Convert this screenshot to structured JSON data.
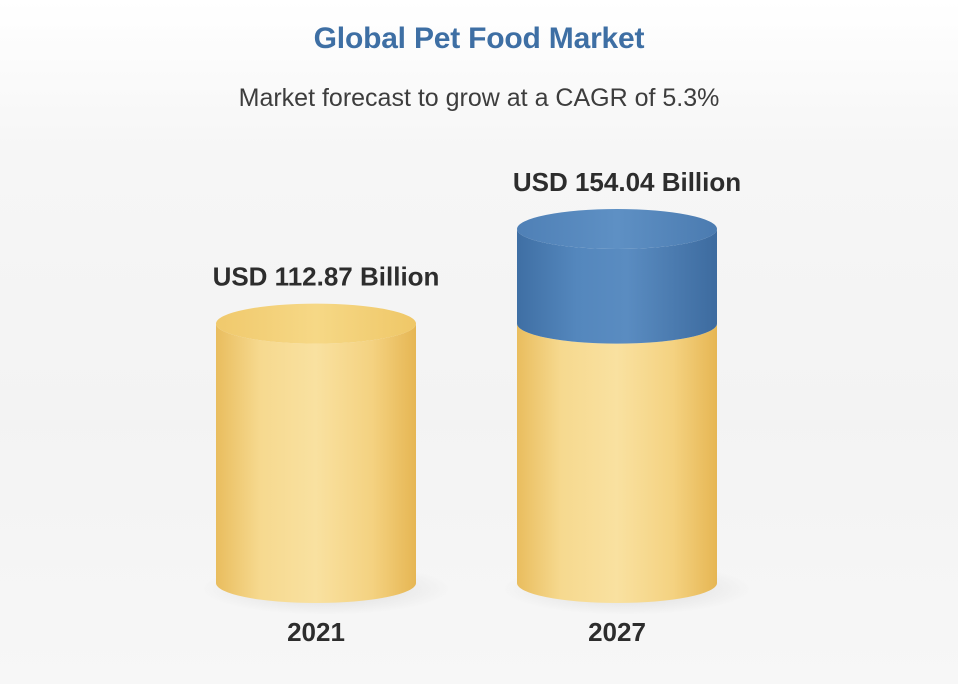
{
  "chart_data": {
    "type": "bar",
    "title": "Global Pet Food Market",
    "subtitle": "Market forecast to grow at a CAGR of 5.3%",
    "categories": [
      "2021",
      "2027"
    ],
    "values": [
      112.87,
      154.04
    ],
    "value_labels": [
      "USD 112.87 Billion",
      "USD 154.04 Billion"
    ],
    "unit": "USD Billion",
    "base_value": 112.87,
    "ylim": [
      0,
      154.04
    ],
    "grid": false,
    "colors": {
      "base": "#f2cf7a",
      "growth": "#4a7fb5",
      "title": "#3e6fa4"
    }
  }
}
